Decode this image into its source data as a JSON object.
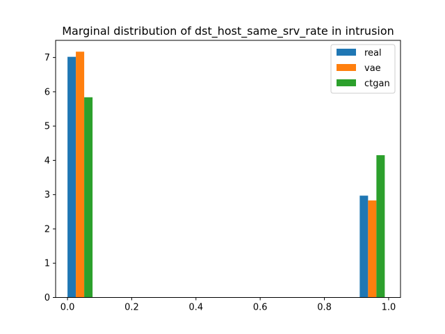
{
  "chart_data": {
    "type": "bar",
    "title": "Marginal distribution of dst_host_same_srv_rate in intrusion",
    "xlabel": "",
    "ylabel": "",
    "xlim": [
      -0.037,
      1.037
    ],
    "ylim": [
      0,
      7.5
    ],
    "xticks": [
      "0.0",
      "0.2",
      "0.4",
      "0.6",
      "0.8",
      "1.0"
    ],
    "yticks": [
      "0",
      "1",
      "2",
      "3",
      "4",
      "5",
      "6",
      "7"
    ],
    "bin_width": 0.026,
    "grid": false,
    "legend_position": "top-right",
    "series": [
      {
        "name": "real",
        "color": "#1f77b4",
        "x": [
          0.0,
          0.91
        ],
        "values": [
          7.02,
          2.97
        ]
      },
      {
        "name": "vae",
        "color": "#ff7f0e",
        "x": [
          0.026,
          0.936
        ],
        "values": [
          7.17,
          2.83
        ]
      },
      {
        "name": "ctgan",
        "color": "#2ca02c",
        "x": [
          0.052,
          0.962
        ],
        "values": [
          5.84,
          4.15
        ]
      }
    ]
  }
}
